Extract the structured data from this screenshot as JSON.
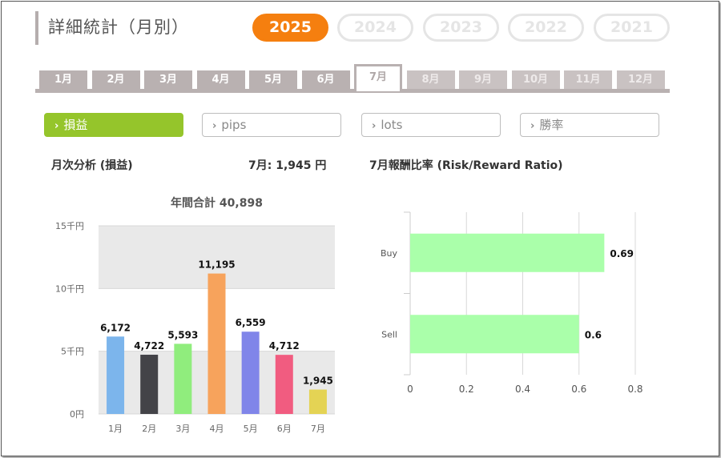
{
  "page_title": "詳細統計（月別）",
  "years": [
    "2025",
    "2024",
    "2023",
    "2022",
    "2021"
  ],
  "active_year": "2025",
  "months": [
    "1月",
    "2月",
    "3月",
    "4月",
    "5月",
    "6月",
    "7月",
    "8月",
    "9月",
    "10月",
    "11月",
    "12月"
  ],
  "active_month": "7月",
  "metric_buttons": [
    {
      "label": "損益",
      "active": true
    },
    {
      "label": "pips",
      "active": false
    },
    {
      "label": "lots",
      "active": false
    },
    {
      "label": "勝率",
      "active": false
    }
  ],
  "left_panel": {
    "heading": "月次分析 (損益)",
    "month_summary": "7月:  1,945 円"
  },
  "right_panel": {
    "heading": "7月報酬比率 (Risk/Reward Ratio)"
  },
  "chart_data": [
    {
      "type": "bar",
      "title": "年間合計 40,898",
      "categories": [
        "1月",
        "2月",
        "3月",
        "4月",
        "5月",
        "6月",
        "7月"
      ],
      "values": [
        6172,
        4722,
        5593,
        11195,
        6559,
        4712,
        1945
      ],
      "value_labels": [
        "6,172",
        "4,722",
        "5,593",
        "11,195",
        "6,559",
        "4,712",
        "1,945"
      ],
      "colors": [
        "#7cb5ec",
        "#434348",
        "#90ed7d",
        "#f7a35c",
        "#8085e9",
        "#f15c80",
        "#e4d354"
      ],
      "ylim": [
        0,
        15000
      ],
      "yticks": [
        0,
        5000,
        10000,
        15000
      ],
      "ytick_labels": [
        "0円",
        "5千円",
        "10千円",
        "15千円"
      ],
      "grid": "alternating bands"
    },
    {
      "type": "bar",
      "orientation": "horizontal",
      "categories": [
        "Buy",
        "Sell"
      ],
      "values": [
        0.69,
        0.6
      ],
      "value_labels": [
        "0.69",
        "0.6"
      ],
      "color": "#aaffaa",
      "xlim": [
        0,
        0.8
      ],
      "xticks": [
        0,
        0.2,
        0.4,
        0.6,
        0.8
      ],
      "xtick_labels": [
        "0",
        "0.2",
        "0.4",
        "0.6",
        "0.8"
      ],
      "grid": true
    }
  ]
}
